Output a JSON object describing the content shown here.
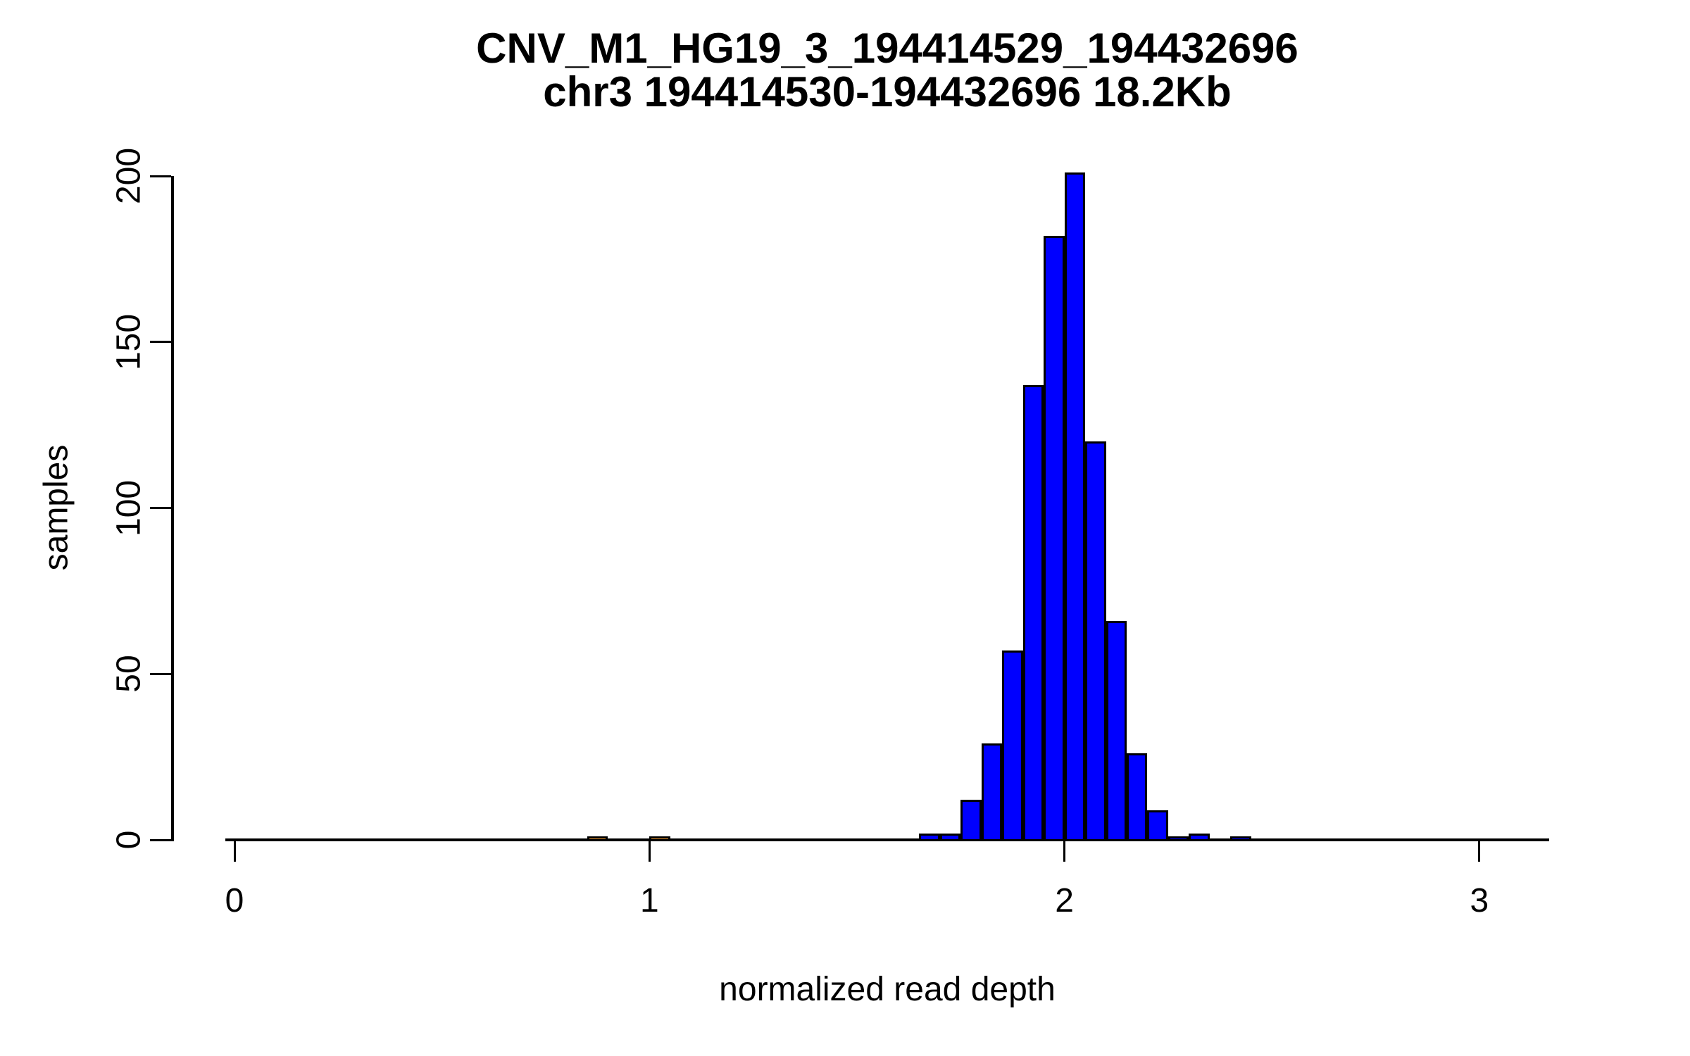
{
  "title": {
    "line1": "CNV_M1_HG19_3_194414529_194432696",
    "line2": "chr3 194414530-194432696 18.2Kb"
  },
  "colors": {
    "bar_fill": "#0000FF",
    "highlight_fill": "#E8952F",
    "bar_outline": "#000000",
    "axis": "#000000",
    "background": "#FFFFFF"
  },
  "chart_data": {
    "type": "bar",
    "subtype": "histogram",
    "title": "CNV_M1_HG19_3_194414529_194432696",
    "subtitle": "chr3 194414530-194432696 18.2Kb",
    "xlabel": "normalized read depth",
    "ylabel": "samples",
    "xlim": [
      -0.02,
      3.17
    ],
    "ylim": [
      0,
      201
    ],
    "grid": false,
    "legend_position": "none",
    "bin_width": 0.05,
    "x_ticks": [
      0,
      1,
      2,
      3
    ],
    "y_ticks": [
      0,
      50,
      100,
      150,
      200
    ],
    "bars": [
      {
        "x": 1.65,
        "count": 2
      },
      {
        "x": 1.7,
        "count": 2
      },
      {
        "x": 1.75,
        "count": 12
      },
      {
        "x": 1.8,
        "count": 29
      },
      {
        "x": 1.85,
        "count": 57
      },
      {
        "x": 1.9,
        "count": 137
      },
      {
        "x": 1.95,
        "count": 182
      },
      {
        "x": 2.0,
        "count": 201
      },
      {
        "x": 2.05,
        "count": 120
      },
      {
        "x": 2.1,
        "count": 66
      },
      {
        "x": 2.15,
        "count": 26
      },
      {
        "x": 2.2,
        "count": 9
      },
      {
        "x": 2.25,
        "count": 1
      },
      {
        "x": 2.3,
        "count": 2
      },
      {
        "x": 2.4,
        "count": 1
      }
    ],
    "highlight_bars": [
      {
        "x": 0.85,
        "count": 1
      },
      {
        "x": 1.0,
        "count": 1
      }
    ]
  }
}
